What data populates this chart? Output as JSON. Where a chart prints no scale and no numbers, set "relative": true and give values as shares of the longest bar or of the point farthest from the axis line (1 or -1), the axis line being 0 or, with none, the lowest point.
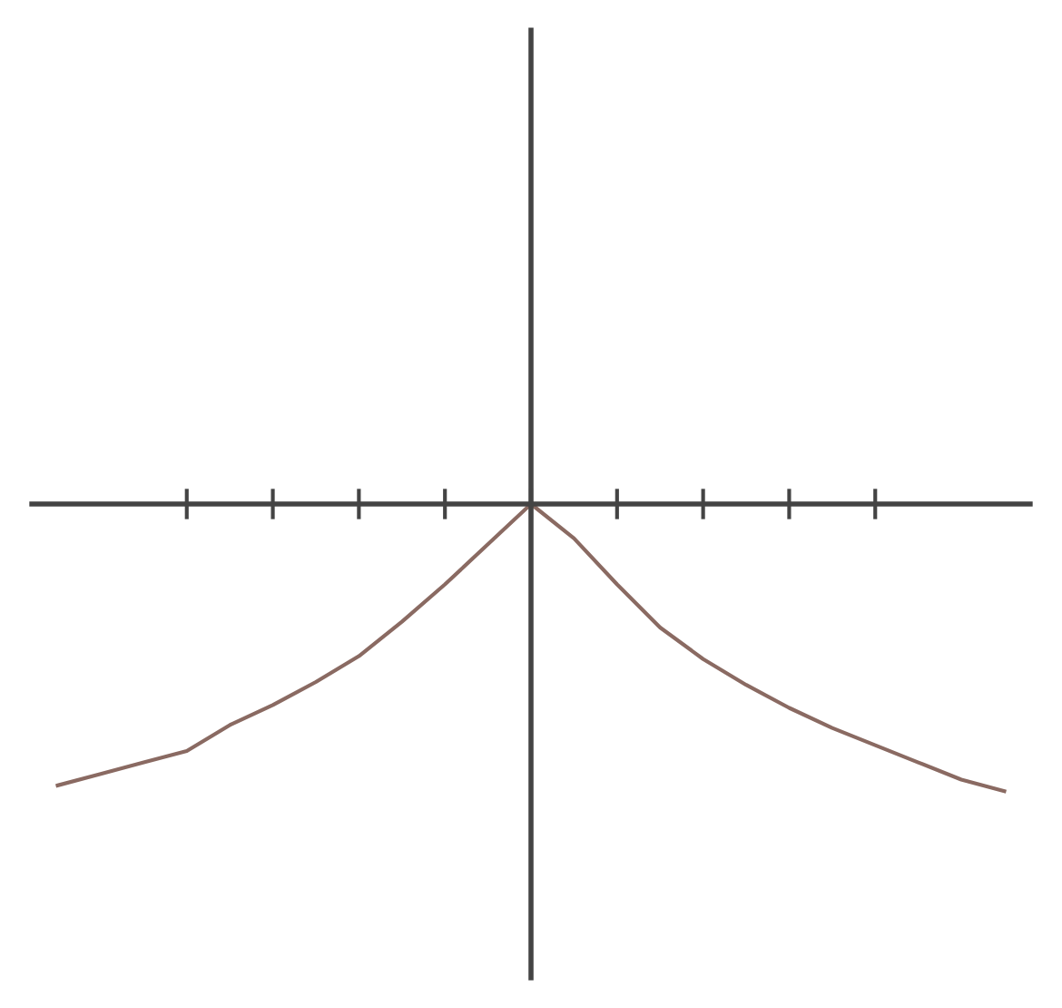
{
  "chart_data": {
    "type": "line",
    "relative": true,
    "categories": [
      null,
      null,
      null,
      null,
      null,
      null,
      null,
      null,
      null,
      null,
      null,
      null,
      null,
      null,
      null,
      null,
      null,
      null,
      null,
      null,
      null,
      null,
      null
    ],
    "series": [
      {
        "color": "#8a6a62",
        "values": [
          -0.98,
          -0.94,
          -0.9,
          -0.86,
          -0.77,
          -0.7,
          -0.62,
          -0.53,
          -0.41,
          -0.28,
          -0.14,
          0,
          -0.12,
          -0.28,
          -0.43,
          -0.54,
          -0.63,
          -0.71,
          -0.78,
          -0.84,
          -0.9,
          -0.96,
          -1.0
        ]
      }
    ],
    "marker": "none",
    "line_style": "solid",
    "grid": false,
    "legend": false
  }
}
